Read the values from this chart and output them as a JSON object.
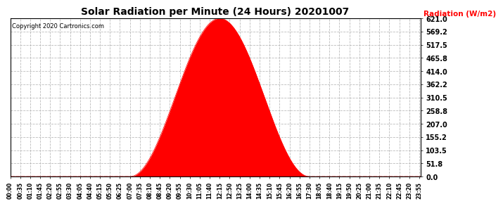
{
  "title": "Solar Radiation per Minute (24 Hours) 20201007",
  "ylabel": "Radiation (W/m2)",
  "ylabel_color": "red",
  "copyright_text": "Copyright 2020 Cartronics.com",
  "fill_color": "red",
  "line_color": "red",
  "background_color": "#ffffff",
  "grid_color": "#bbbbbb",
  "ymax": 621.0,
  "ymin": 0.0,
  "ytick_values": [
    0.0,
    51.8,
    103.5,
    155.2,
    207.0,
    258.8,
    310.5,
    362.2,
    414.0,
    465.8,
    517.5,
    569.2,
    621.0
  ],
  "hline_color": "red",
  "hline_y": 0.0,
  "n_minutes": 1440,
  "sunrise_minute": 420,
  "sunset_minute": 1050,
  "peak_minute": 735,
  "peak_value": 621.0,
  "tick_step": 35
}
